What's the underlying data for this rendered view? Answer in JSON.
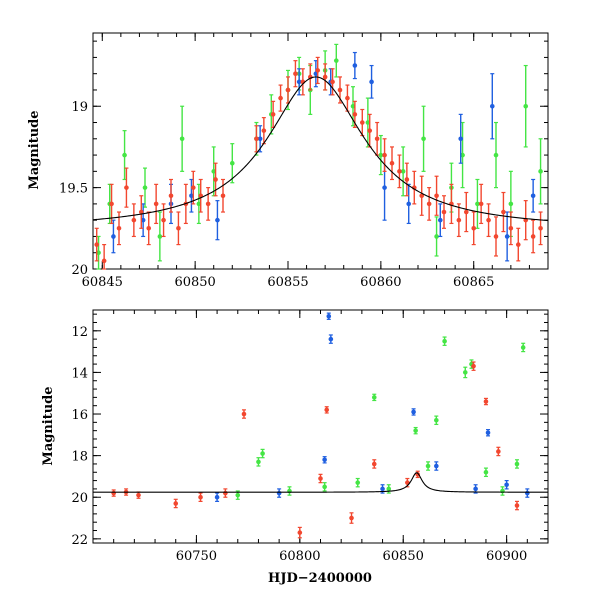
{
  "colors": {
    "green": "#44e544",
    "blue": "#1f5fe0",
    "red": "#f2472f",
    "model": "#000000"
  },
  "chart_data": [
    {
      "type": "scatter",
      "panel": "top",
      "title": "",
      "xlabel": "",
      "ylabel": "Magnitude",
      "xlim": [
        60844.5,
        60869
      ],
      "ylim": [
        20,
        18.55
      ],
      "y_inverted": true,
      "x_ticks": [
        60845,
        60850,
        60855,
        60860,
        60865
      ],
      "x_tick_labels": [
        "60845",
        "60850",
        "60855",
        "60860",
        "60865"
      ],
      "y_ticks": [
        19,
        19.5,
        20
      ],
      "y_tick_labels": [
        "19",
        "19.5",
        "20"
      ],
      "model_curve": {
        "peak_x": 60856.5,
        "peak_y": 18.82,
        "base_y": 19.76,
        "width": 3.2
      },
      "series": [
        {
          "color": "green",
          "points": [
            [
              60844.8,
              19.9,
              0.1
            ],
            [
              60845.4,
              19.6,
              0.12
            ],
            [
              60846.2,
              19.3,
              0.15
            ],
            [
              60847.3,
              19.5,
              0.12
            ],
            [
              60848.1,
              19.8,
              0.15
            ],
            [
              60849.3,
              19.2,
              0.2
            ],
            [
              60850.2,
              19.6,
              0.12
            ],
            [
              60851.0,
              19.4,
              0.15
            ],
            [
              60852.0,
              19.35,
              0.12
            ],
            [
              60853.3,
              19.2,
              0.1
            ],
            [
              60854.1,
              19.05,
              0.12
            ],
            [
              60855.0,
              18.9,
              0.12
            ],
            [
              60855.6,
              18.8,
              0.1
            ],
            [
              60856.2,
              18.9,
              0.15
            ],
            [
              60857.0,
              18.78,
              0.12
            ],
            [
              60857.6,
              18.72,
              0.1
            ],
            [
              60858.5,
              19.0,
              0.12
            ],
            [
              60859.3,
              19.1,
              0.15
            ],
            [
              60860.0,
              19.3,
              0.12
            ],
            [
              60861.2,
              19.4,
              0.15
            ],
            [
              60862.3,
              19.2,
              0.2
            ],
            [
              60863.0,
              19.8,
              0.12
            ],
            [
              60863.8,
              19.5,
              0.15
            ],
            [
              60864.4,
              19.3,
              0.2
            ],
            [
              60865.2,
              19.6,
              0.15
            ],
            [
              60866.2,
              19.3,
              0.2
            ],
            [
              60867.0,
              19.6,
              0.2
            ],
            [
              60867.8,
              19.0,
              0.25
            ],
            [
              60868.6,
              19.4,
              0.2
            ]
          ]
        },
        {
          "color": "blue",
          "points": [
            [
              60845.6,
              19.8,
              0.1
            ],
            [
              60847.2,
              19.7,
              0.1
            ],
            [
              60848.7,
              19.6,
              0.12
            ],
            [
              60849.8,
              19.55,
              0.1
            ],
            [
              60851.2,
              19.7,
              0.12
            ],
            [
              60853.5,
              19.2,
              0.08
            ],
            [
              60855.6,
              18.85,
              0.08
            ],
            [
              60856.5,
              18.8,
              0.08
            ],
            [
              60857.3,
              18.85,
              0.08
            ],
            [
              60858.6,
              18.75,
              0.08
            ],
            [
              60859.5,
              18.85,
              0.1
            ],
            [
              60860.2,
              19.5,
              0.2
            ],
            [
              60861.5,
              19.6,
              0.12
            ],
            [
              60863.2,
              19.7,
              0.1
            ],
            [
              60864.3,
              19.2,
              0.15
            ],
            [
              60866.0,
              19.0,
              0.2
            ],
            [
              60866.8,
              19.8,
              0.15
            ],
            [
              60868.2,
              19.55,
              0.1
            ]
          ]
        },
        {
          "color": "red",
          "points": [
            [
              60844.7,
              19.85,
              0.1
            ],
            [
              60845.1,
              19.95,
              0.1
            ],
            [
              60845.5,
              19.6,
              0.12
            ],
            [
              60845.9,
              19.75,
              0.1
            ],
            [
              60846.3,
              19.5,
              0.12
            ],
            [
              60846.7,
              19.7,
              0.1
            ],
            [
              60847.1,
              19.65,
              0.1
            ],
            [
              60847.5,
              19.75,
              0.1
            ],
            [
              60847.9,
              19.6,
              0.12
            ],
            [
              60848.3,
              19.7,
              0.1
            ],
            [
              60848.7,
              19.55,
              0.1
            ],
            [
              60849.1,
              19.75,
              0.1
            ],
            [
              60849.5,
              19.6,
              0.12
            ],
            [
              60849.9,
              19.5,
              0.1
            ],
            [
              60850.3,
              19.55,
              0.1
            ],
            [
              60850.7,
              19.6,
              0.1
            ],
            [
              60851.1,
              19.45,
              0.1
            ],
            [
              60851.5,
              19.55,
              0.1
            ],
            [
              60853.3,
              19.2,
              0.08
            ],
            [
              60853.7,
              19.15,
              0.08
            ],
            [
              60854.2,
              19.05,
              0.08
            ],
            [
              60854.6,
              18.95,
              0.08
            ],
            [
              60855.0,
              18.9,
              0.08
            ],
            [
              60855.4,
              18.8,
              0.08
            ],
            [
              60855.8,
              18.85,
              0.08
            ],
            [
              60856.2,
              18.82,
              0.08
            ],
            [
              60856.6,
              18.78,
              0.08
            ],
            [
              60857.0,
              18.82,
              0.08
            ],
            [
              60857.4,
              18.85,
              0.08
            ],
            [
              60857.8,
              18.9,
              0.08
            ],
            [
              60858.2,
              18.95,
              0.08
            ],
            [
              60858.6,
              19.05,
              0.08
            ],
            [
              60859.0,
              19.1,
              0.08
            ],
            [
              60859.4,
              19.15,
              0.1
            ],
            [
              60859.8,
              19.2,
              0.1
            ],
            [
              60860.2,
              19.3,
              0.1
            ],
            [
              60860.6,
              19.35,
              0.1
            ],
            [
              60861.0,
              19.4,
              0.1
            ],
            [
              60861.4,
              19.45,
              0.1
            ],
            [
              60861.8,
              19.5,
              0.1
            ],
            [
              60862.2,
              19.55,
              0.12
            ],
            [
              60862.6,
              19.6,
              0.1
            ],
            [
              60863.0,
              19.55,
              0.12
            ],
            [
              60863.4,
              19.65,
              0.1
            ],
            [
              60863.8,
              19.6,
              0.12
            ],
            [
              60864.2,
              19.7,
              0.1
            ],
            [
              60864.6,
              19.65,
              0.12
            ],
            [
              60865.0,
              19.75,
              0.1
            ],
            [
              60865.4,
              19.6,
              0.12
            ],
            [
              60865.8,
              19.7,
              0.1
            ],
            [
              60866.2,
              19.8,
              0.12
            ],
            [
              60866.6,
              19.65,
              0.12
            ],
            [
              60867.0,
              19.75,
              0.1
            ],
            [
              60867.4,
              19.85,
              0.1
            ],
            [
              60867.8,
              19.7,
              0.12
            ],
            [
              60868.2,
              19.8,
              0.1
            ],
            [
              60868.6,
              19.75,
              0.1
            ]
          ]
        }
      ]
    },
    {
      "type": "scatter",
      "panel": "bottom",
      "title": "",
      "xlabel": "HJD−2400000",
      "ylabel": "Magnitude",
      "xlim": [
        60700,
        60920
      ],
      "ylim": [
        22.2,
        11
      ],
      "y_inverted": true,
      "x_ticks": [
        60750,
        60800,
        60850,
        60900
      ],
      "x_tick_labels": [
        "60750",
        "60800",
        "60850",
        "60900"
      ],
      "y_ticks": [
        12,
        14,
        16,
        18,
        20,
        22
      ],
      "y_tick_labels": [
        "12",
        "14",
        "16",
        "18",
        "20",
        "22"
      ],
      "model_curve": {
        "peak_x": 60856.5,
        "peak_y": 18.82,
        "base_y": 19.76,
        "width": 3.2
      },
      "series": [
        {
          "color": "green",
          "points": [
            [
              60770,
              19.9,
              0.2
            ],
            [
              60780,
              18.3,
              0.2
            ],
            [
              60782,
              17.9,
              0.2
            ],
            [
              60795,
              19.7,
              0.2
            ],
            [
              60812,
              19.5,
              0.2
            ],
            [
              60828,
              19.3,
              0.2
            ],
            [
              60836,
              15.2,
              0.15
            ],
            [
              60843,
              19.6,
              0.2
            ],
            [
              60856,
              16.8,
              0.15
            ],
            [
              60862,
              18.5,
              0.2
            ],
            [
              60866,
              16.3,
              0.2
            ],
            [
              60870,
              12.5,
              0.2
            ],
            [
              60880,
              14.0,
              0.25
            ],
            [
              60883,
              13.6,
              0.2
            ],
            [
              60890,
              18.8,
              0.2
            ],
            [
              60898,
              19.7,
              0.2
            ],
            [
              60905,
              18.4,
              0.2
            ],
            [
              60908,
              12.8,
              0.2
            ]
          ]
        },
        {
          "color": "blue",
          "points": [
            [
              60760,
              20.0,
              0.2
            ],
            [
              60790,
              19.8,
              0.2
            ],
            [
              60812,
              18.2,
              0.15
            ],
            [
              60814,
              11.3,
              0.15
            ],
            [
              60815,
              12.4,
              0.2
            ],
            [
              60840,
              19.6,
              0.2
            ],
            [
              60855,
              15.9,
              0.15
            ],
            [
              60866,
              18.5,
              0.2
            ],
            [
              60885,
              19.6,
              0.2
            ],
            [
              60891,
              16.9,
              0.15
            ],
            [
              60900,
              19.4,
              0.2
            ],
            [
              60910,
              19.8,
              0.2
            ]
          ]
        },
        {
          "color": "red",
          "points": [
            [
              60710,
              19.8,
              0.15
            ],
            [
              60716,
              19.75,
              0.15
            ],
            [
              60722,
              19.9,
              0.15
            ],
            [
              60740,
              20.3,
              0.2
            ],
            [
              60752,
              20.0,
              0.2
            ],
            [
              60764,
              19.8,
              0.2
            ],
            [
              60773,
              16.0,
              0.2
            ],
            [
              60800,
              21.7,
              0.25
            ],
            [
              60810,
              19.1,
              0.2
            ],
            [
              60813,
              15.8,
              0.15
            ],
            [
              60825,
              21.0,
              0.25
            ],
            [
              60836,
              18.4,
              0.2
            ],
            [
              60852,
              19.3,
              0.2
            ],
            [
              60857,
              18.9,
              0.15
            ],
            [
              60884,
              13.7,
              0.2
            ],
            [
              60890,
              15.4,
              0.15
            ],
            [
              60896,
              17.8,
              0.2
            ],
            [
              60905,
              20.4,
              0.2
            ]
          ]
        }
      ]
    }
  ]
}
